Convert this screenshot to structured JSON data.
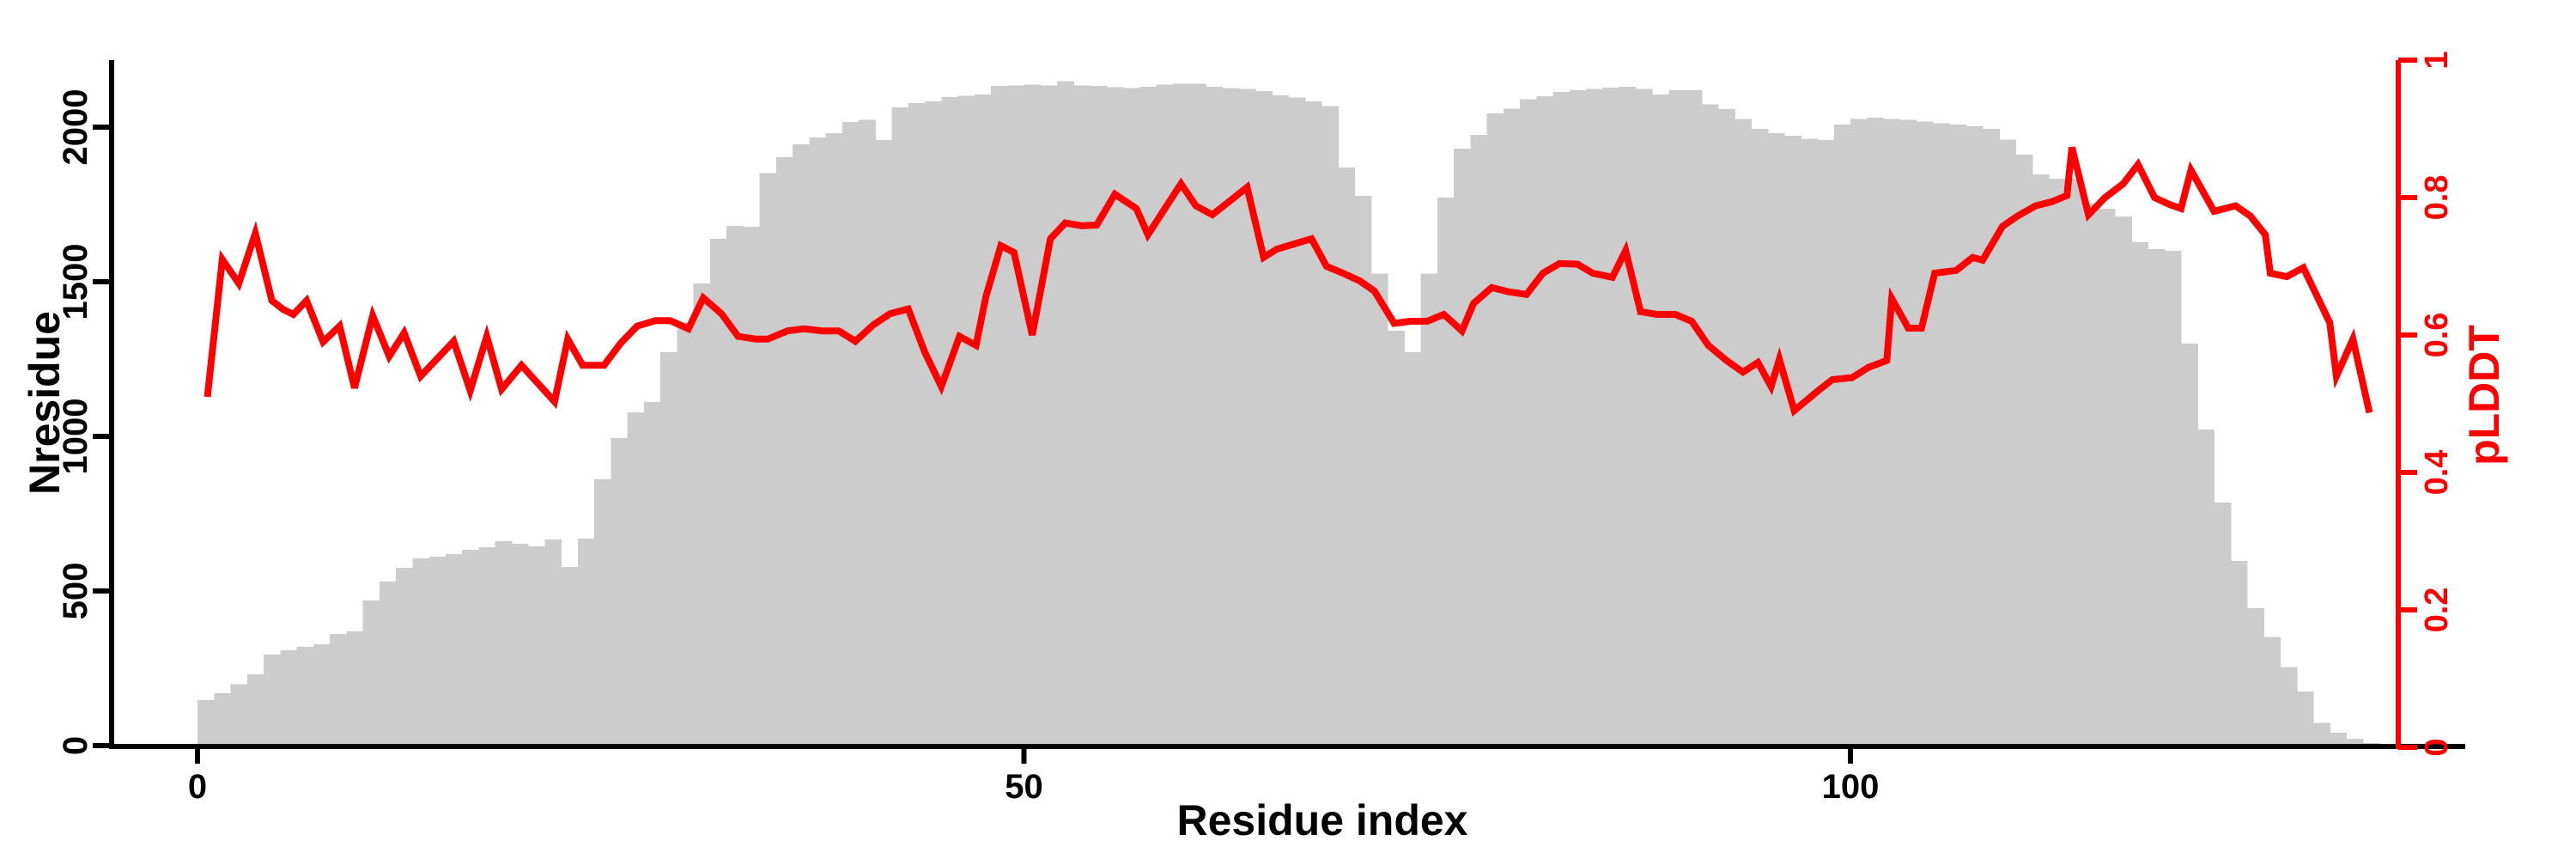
{
  "figure": {
    "background": "#ffffff",
    "axis_color_left": "#000000",
    "axis_color_bottom": "#000000",
    "axis_color_right": "#ff0000"
  },
  "chart_data": {
    "type": "combo",
    "title": "",
    "xlabel": "Residue index",
    "ylabel_left": "Nresidue",
    "ylabel_right": "pLDDT",
    "x_ticks": [
      0,
      50,
      100
    ],
    "y_left_ticks": [
      0,
      500,
      1000,
      1500,
      2000
    ],
    "y_right_ticks": [
      0,
      0.2,
      0.4,
      0.6,
      0.8,
      1
    ],
    "y_left_range": [
      0,
      2216
    ],
    "y_right_range": [
      0,
      1
    ],
    "x_range": [
      -5,
      137
    ],
    "grid": false,
    "legend": "none",
    "series": [
      {
        "name": "Nresidue",
        "type": "bar",
        "axis": "left",
        "color": "#cccccc",
        "x_start": 0,
        "x_step": 1,
        "values": [
          147,
          170,
          198,
          231,
          295,
          308,
          319,
          328,
          361,
          369,
          469,
          531,
          575,
          606,
          611,
          620,
          633,
          642,
          661,
          653,
          644,
          667,
          578,
          670,
          861,
          994,
          1078,
          1111,
          1272,
          1369,
          1494,
          1639,
          1681,
          1678,
          1851,
          1903,
          1944,
          1967,
          1981,
          2017,
          2024,
          1958,
          2064,
          2078,
          2083,
          2097,
          2101,
          2106,
          2133,
          2135,
          2138,
          2135,
          2149,
          2135,
          2133,
          2129,
          2126,
          2130,
          2138,
          2140,
          2140,
          2131,
          2126,
          2124,
          2117,
          2103,
          2096,
          2083,
          2068,
          1869,
          1778,
          1527,
          1341,
          1272,
          1527,
          1772,
          1930,
          1975,
          2044,
          2060,
          2090,
          2100,
          2114,
          2120,
          2124,
          2128,
          2130,
          2124,
          2106,
          2119,
          2119,
          2073,
          2059,
          2027,
          1994,
          1981,
          1972,
          1962,
          1958,
          2008,
          2027,
          2031,
          2027,
          2024,
          2018,
          2013,
          2008,
          2003,
          1994,
          1960,
          1911,
          1847,
          1833,
          1833,
          1753,
          1736,
          1711,
          1628,
          1606,
          1600,
          1300,
          1022,
          786,
          597,
          444,
          351,
          254,
          175,
          73,
          41,
          22,
          8
        ]
      },
      {
        "name": "pLDDT",
        "type": "line",
        "axis": "right",
        "color": "#ff0000",
        "x": [
          0.6,
          1.5,
          2.5,
          3.5,
          4.5,
          5.2,
          5.8,
          6.6,
          7.6,
          8.6,
          9.5,
          10.6,
          11.6,
          12.5,
          13.5,
          15.5,
          16.5,
          17.5,
          18.4,
          19.6,
          21.6,
          22.4,
          23.3,
          24.6,
          25.6,
          26.6,
          27.7,
          28.6,
          29.7,
          30.6,
          31.7,
          32.7,
          33.8,
          34.5,
          35.7,
          36.7,
          37.8,
          38.8,
          39.8,
          40.9,
          41.9,
          43.0,
          44.0,
          45.0,
          46.1,
          47.1,
          47.7,
          48.6,
          49.4,
          50.5,
          51.6,
          52.5,
          53.5,
          54.4,
          55.5,
          56.8,
          57.5,
          59.5,
          60.4,
          61.4,
          63.5,
          64.5,
          65.3,
          66.0,
          67.4,
          68.3,
          69.3,
          70.3,
          71.2,
          72.4,
          73.4,
          74.4,
          75.4,
          76.5,
          77.2,
          78.3,
          79.3,
          80.4,
          81.4,
          82.4,
          83.5,
          84.4,
          85.6,
          86.4,
          87.3,
          88.3,
          89.4,
          90.4,
          91.4,
          92.5,
          93.5,
          94.4,
          95.2,
          95.7,
          96.6,
          98.1,
          98.9,
          100.1,
          101.1,
          102.2,
          102.5,
          103.5,
          104.3,
          105.1,
          106.4,
          107.4,
          108.0,
          109.2,
          110.1,
          111.2,
          112.2,
          113.1,
          113.4,
          114.4,
          115.4,
          116.5,
          117.4,
          118.4,
          119.3,
          120.0,
          120.6,
          122.0,
          123.3,
          124.2,
          125.1,
          125.4,
          126.4,
          127.4,
          128.4,
          129.0,
          129.4,
          130.4,
          131.4
        ],
        "y": [
          0.51,
          0.71,
          0.675,
          0.748,
          0.65,
          0.637,
          0.63,
          0.65,
          0.59,
          0.613,
          0.523,
          0.628,
          0.569,
          0.603,
          0.54,
          0.591,
          0.519,
          0.598,
          0.521,
          0.556,
          0.503,
          0.594,
          0.556,
          0.556,
          0.588,
          0.613,
          0.621,
          0.621,
          0.609,
          0.654,
          0.631,
          0.598,
          0.594,
          0.594,
          0.606,
          0.609,
          0.606,
          0.606,
          0.591,
          0.615,
          0.631,
          0.638,
          0.575,
          0.525,
          0.598,
          0.585,
          0.656,
          0.73,
          0.72,
          0.6,
          0.74,
          0.763,
          0.759,
          0.76,
          0.805,
          0.784,
          0.746,
          0.82,
          0.788,
          0.775,
          0.815,
          0.713,
          0.725,
          0.73,
          0.74,
          0.7,
          0.69,
          0.679,
          0.664,
          0.617,
          0.62,
          0.62,
          0.63,
          0.606,
          0.646,
          0.669,
          0.663,
          0.659,
          0.69,
          0.704,
          0.703,
          0.69,
          0.684,
          0.723,
          0.634,
          0.63,
          0.63,
          0.62,
          0.585,
          0.563,
          0.546,
          0.56,
          0.525,
          0.565,
          0.49,
          0.52,
          0.535,
          0.538,
          0.553,
          0.563,
          0.653,
          0.61,
          0.61,
          0.69,
          0.694,
          0.713,
          0.709,
          0.758,
          0.773,
          0.788,
          0.794,
          0.803,
          0.873,
          0.775,
          0.8,
          0.82,
          0.848,
          0.8,
          0.79,
          0.784,
          0.84,
          0.78,
          0.788,
          0.773,
          0.746,
          0.69,
          0.685,
          0.698,
          0.648,
          0.618,
          0.54,
          0.594,
          0.487
        ]
      }
    ]
  }
}
